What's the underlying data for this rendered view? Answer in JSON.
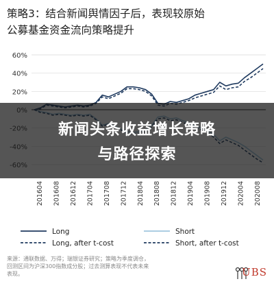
{
  "title": {
    "line1": "策略3：结合新闻舆情因子后，表现较原始",
    "line2": "公募基金资金流向策略提升"
  },
  "overlay": {
    "line1": "新闻头条收益增长策略",
    "line2": "与路径探索"
  },
  "footnote": {
    "line1": "来源：通联数据、万得；瑞银证券研究；策略为季度调仓，",
    "line2": "回测区间为沪深300指数成分股；过去测算表现不代表未来",
    "line3": "表现。"
  },
  "brand": {
    "name": "UBS",
    "logo_icon": "ubs-keys-icon"
  },
  "colors": {
    "long": "#1f3a5f",
    "short": "#9fc6de",
    "grid": "#d9d9d9",
    "brand": "#c0392b"
  },
  "chart_data": {
    "type": "line",
    "ylim": [
      -0.6,
      0.6
    ],
    "y_ticks": [
      -0.6,
      -0.4,
      -0.2,
      0.0,
      0.2,
      0.4,
      0.6
    ],
    "y_tick_labels": [
      "-60%",
      "-40%",
      "-20%",
      "0%",
      "20%",
      "40%",
      "60%"
    ],
    "x_tick_labels": [
      "201604",
      "201608",
      "201612",
      "201704",
      "201708",
      "201712",
      "201804",
      "201808",
      "201812",
      "201904",
      "201908",
      "201912",
      "202004",
      "202008"
    ],
    "legend": [
      "Long",
      "Short",
      "Long, after t-cost",
      "Short, after t-cost"
    ],
    "legend_placement": "bottom",
    "series": [
      {
        "name": "Long",
        "style": "solid-dark",
        "values": [
          0.0,
          0.02,
          0.06,
          0.05,
          0.04,
          0.03,
          0.04,
          0.05,
          0.04,
          0.05,
          0.08,
          0.16,
          0.14,
          0.17,
          0.2,
          0.25,
          0.25,
          0.24,
          0.22,
          0.17,
          0.07,
          0.06,
          0.09,
          0.08,
          0.1,
          0.12,
          0.16,
          0.18,
          0.2,
          0.22,
          0.3,
          0.26,
          0.28,
          0.29,
          0.35,
          0.4,
          0.45,
          0.5
        ]
      },
      {
        "name": "Short",
        "style": "solid-light",
        "values": [
          0.0,
          -0.02,
          -0.03,
          -0.05,
          -0.04,
          -0.05,
          -0.06,
          -0.05,
          -0.06,
          -0.05,
          -0.1,
          -0.17,
          -0.15,
          -0.18,
          -0.21,
          -0.24,
          -0.25,
          -0.24,
          -0.22,
          -0.17,
          -0.08,
          -0.07,
          -0.1,
          -0.09,
          -0.12,
          -0.14,
          -0.18,
          -0.2,
          -0.23,
          -0.27,
          -0.34,
          -0.3,
          -0.33,
          -0.36,
          -0.4,
          -0.45,
          -0.5,
          -0.55
        ]
      },
      {
        "name": "Long, after t-cost",
        "style": "dashed-dark",
        "values": [
          0.0,
          0.01,
          0.05,
          0.04,
          0.03,
          0.02,
          0.03,
          0.04,
          0.03,
          0.04,
          0.07,
          0.14,
          0.12,
          0.15,
          0.18,
          0.23,
          0.23,
          0.22,
          0.2,
          0.15,
          0.05,
          0.04,
          0.07,
          0.06,
          0.08,
          0.1,
          0.13,
          0.15,
          0.17,
          0.19,
          0.26,
          0.22,
          0.24,
          0.25,
          0.31,
          0.35,
          0.4,
          0.45
        ]
      },
      {
        "name": "Short, after t-cost",
        "style": "dashed-dark",
        "values": [
          0.0,
          -0.03,
          -0.04,
          -0.06,
          -0.05,
          -0.06,
          -0.07,
          -0.06,
          -0.07,
          -0.06,
          -0.11,
          -0.18,
          -0.16,
          -0.19,
          -0.22,
          -0.26,
          -0.27,
          -0.26,
          -0.24,
          -0.19,
          -0.1,
          -0.09,
          -0.12,
          -0.11,
          -0.14,
          -0.16,
          -0.2,
          -0.22,
          -0.25,
          -0.3,
          -0.37,
          -0.33,
          -0.36,
          -0.39,
          -0.44,
          -0.49,
          -0.54,
          -0.58
        ]
      }
    ]
  }
}
